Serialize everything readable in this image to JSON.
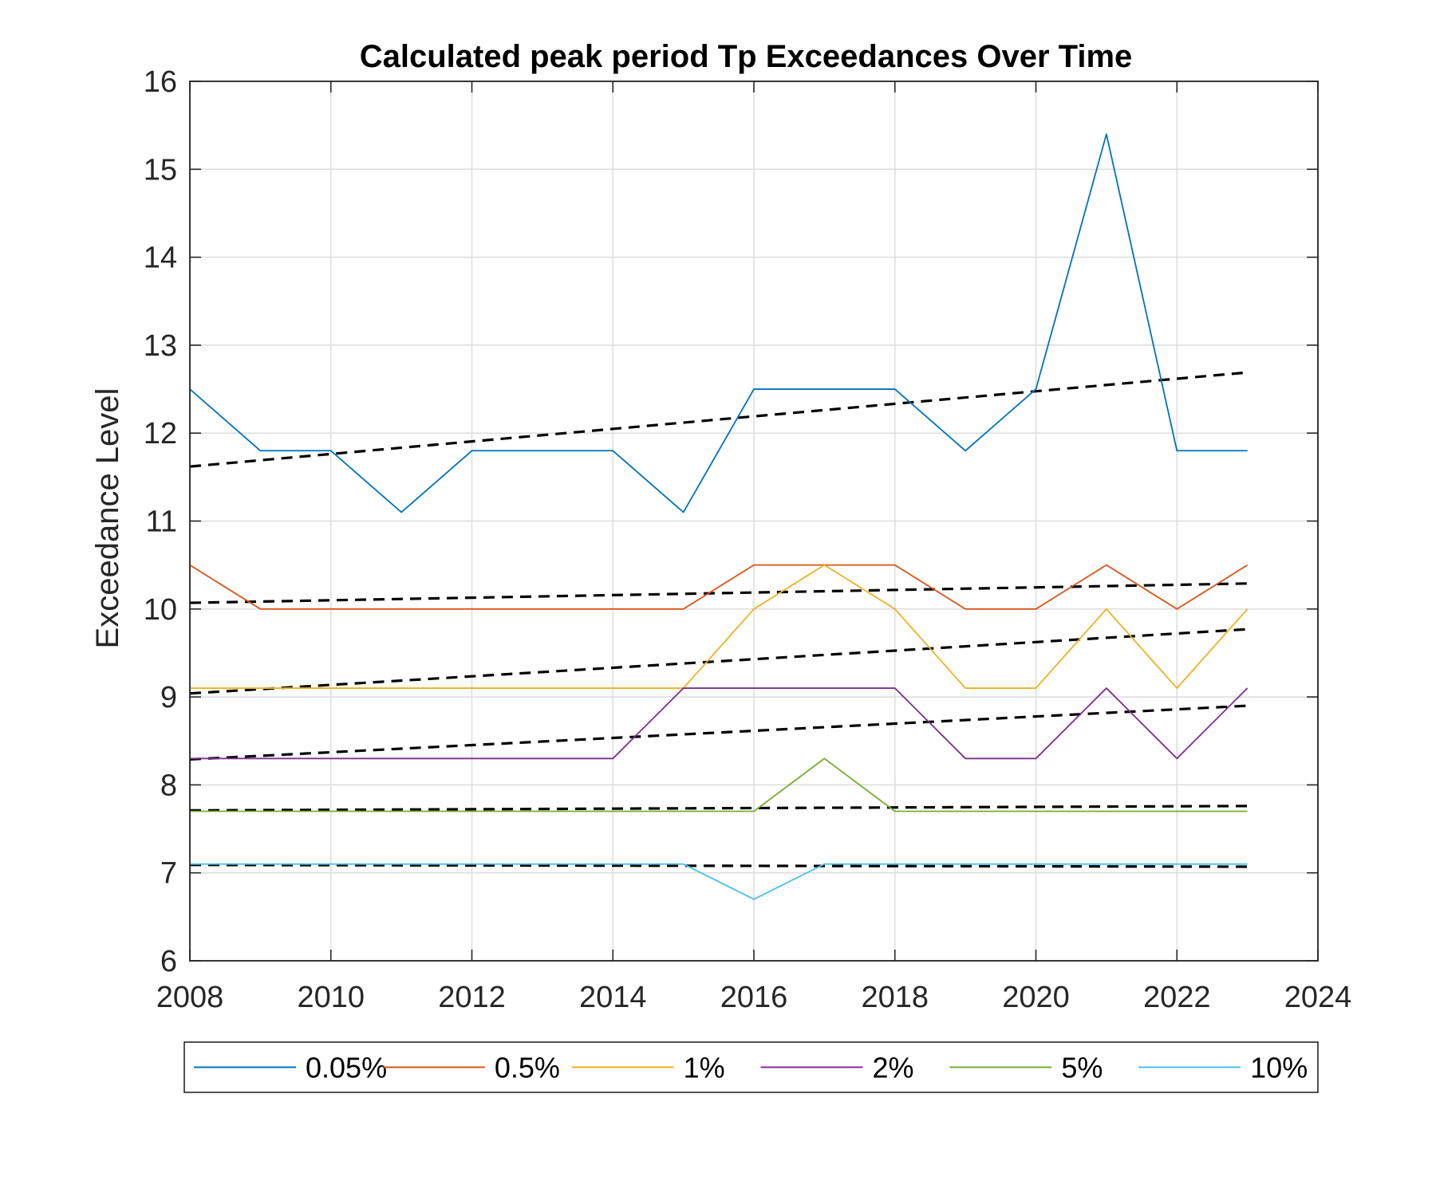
{
  "chart_data": {
    "type": "line",
    "title": "Calculated peak period Tp Exceedances Over Time",
    "xlabel": "",
    "ylabel": "Exceedance Level",
    "xlim": [
      2008,
      2024
    ],
    "ylim": [
      6,
      16
    ],
    "xticks": [
      "2008",
      "2010",
      "2012",
      "2014",
      "2016",
      "2018",
      "2020",
      "2022",
      "2024"
    ],
    "yticks": [
      "6",
      "7",
      "8",
      "9",
      "10",
      "11",
      "12",
      "13",
      "14",
      "15",
      "16"
    ],
    "grid": true,
    "legend_position": "bottom",
    "x": [
      2008,
      2009,
      2010,
      2011,
      2012,
      2013,
      2014,
      2015,
      2016,
      2017,
      2018,
      2019,
      2020,
      2021,
      2022,
      2023
    ],
    "series": [
      {
        "name": "0.05%",
        "color": "#0072BD",
        "values": [
          12.5,
          11.8,
          11.8,
          11.1,
          11.8,
          11.8,
          11.8,
          11.1,
          12.5,
          12.5,
          12.5,
          11.8,
          12.5,
          15.4,
          11.8,
          11.8
        ],
        "trend": [
          11.62,
          12.69
        ]
      },
      {
        "name": "0.5%",
        "color": "#D95319",
        "values": [
          10.5,
          10.0,
          10.0,
          10.0,
          10.0,
          10.0,
          10.0,
          10.0,
          10.5,
          10.5,
          10.5,
          10.0,
          10.0,
          10.5,
          10.0,
          10.5
        ],
        "trend": [
          10.07,
          10.29
        ]
      },
      {
        "name": "1%",
        "color": "#EDB120",
        "values": [
          9.1,
          9.1,
          9.1,
          9.1,
          9.1,
          9.1,
          9.1,
          9.1,
          10.0,
          10.5,
          10.0,
          9.1,
          9.1,
          10.0,
          9.1,
          10.0
        ],
        "trend": [
          9.04,
          9.77
        ]
      },
      {
        "name": "2%",
        "color": "#7E2F8E",
        "values": [
          8.3,
          8.3,
          8.3,
          8.3,
          8.3,
          8.3,
          8.3,
          9.1,
          9.1,
          9.1,
          9.1,
          8.3,
          8.3,
          9.1,
          8.3,
          9.1
        ],
        "trend": [
          8.29,
          8.9
        ]
      },
      {
        "name": "5%",
        "color": "#77AC30",
        "values": [
          7.7,
          7.7,
          7.7,
          7.7,
          7.7,
          7.7,
          7.7,
          7.7,
          7.7,
          8.3,
          7.7,
          7.7,
          7.7,
          7.7,
          7.7,
          7.7
        ],
        "trend": [
          7.71,
          7.76
        ]
      },
      {
        "name": "10%",
        "color": "#4DBEEE",
        "values": [
          7.1,
          7.1,
          7.1,
          7.1,
          7.1,
          7.1,
          7.1,
          7.1,
          6.7,
          7.1,
          7.1,
          7.1,
          7.1,
          7.1,
          7.1,
          7.1
        ],
        "trend": [
          7.09,
          7.07
        ]
      }
    ]
  }
}
